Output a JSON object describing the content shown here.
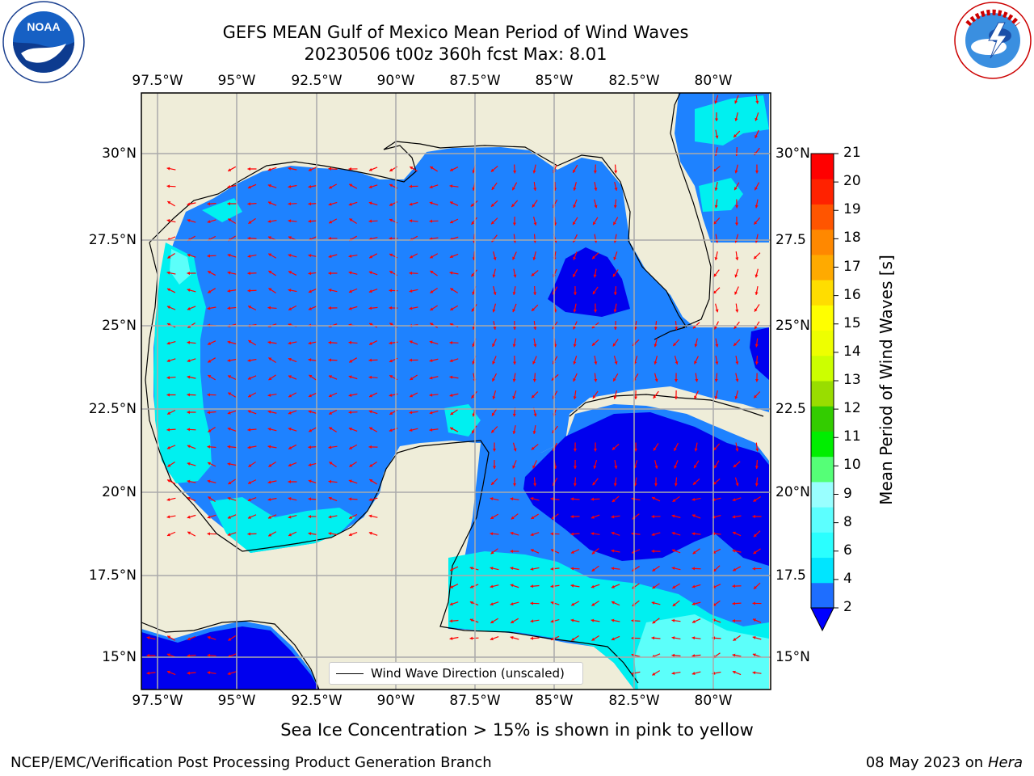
{
  "header": {
    "title_line1": "GEFS MEAN Gulf of Mexico Mean Period of Wind Waves",
    "title_line2": "20230506 t00z 360h fcst   Max: 8.01"
  },
  "logos": {
    "noaa": {
      "text": "NOAA",
      "ring_text": "NATIONAL OCEANIC AND ATMOSPHERIC ADMINISTRATION · U.S. DEPARTMENT OF COMMERCE"
    },
    "nws": {
      "ring_text": "NATIONAL WEATHER SERVICE"
    }
  },
  "map": {
    "lon_labels": [
      "97.5°W",
      "95°W",
      "92.5°W",
      "90°W",
      "87.5°W",
      "85°W",
      "82.5°W",
      "80°W"
    ],
    "lat_labels_left": [
      "30°N",
      "27.5°N",
      "25°N",
      "22.5°N",
      "20°N",
      "17.5°N",
      "15°N"
    ],
    "lat_labels_right": [
      "30°N",
      "27.5",
      "25°N",
      "22.5",
      "20°N",
      "17.5",
      "15°N"
    ],
    "legend_label": "Wind Wave Direction (unscaled)",
    "colors": {
      "land": "#efedd9",
      "level_0_2": "#0000ee",
      "level_2_4": "#1e82ff",
      "level_4_6": "#00f0f0",
      "level_6_8": "#5cfffa",
      "arrow": "#ff0000",
      "grid": "#aaaaaa"
    }
  },
  "colorbar": {
    "label": "Mean Period of Wind Waves [s]",
    "tick_labels": [
      "2",
      "4",
      "6",
      "8",
      "9",
      "10",
      "11",
      "12",
      "13",
      "14",
      "15",
      "16",
      "17",
      "18",
      "19",
      "20",
      "21"
    ],
    "colors": [
      "#1e6eff",
      "#00e5ff",
      "#2affff",
      "#5cffff",
      "#99ffff",
      "#55ff77",
      "#00ee00",
      "#33cc00",
      "#99dd00",
      "#ccff00",
      "#eeff00",
      "#ffff00",
      "#ffdd00",
      "#ffaa00",
      "#ff8800",
      "#ff5500",
      "#ff2200",
      "#ff0000"
    ],
    "extend_color": "#0000ff"
  },
  "footer": {
    "sea_ice_note": "Sea Ice Concentration > 15% is shown in pink to yellow",
    "branch": "NCEP/EMC/Verification Post Processing Product Generation Branch",
    "date": "08 May 2023 on",
    "host": "Hera"
  }
}
